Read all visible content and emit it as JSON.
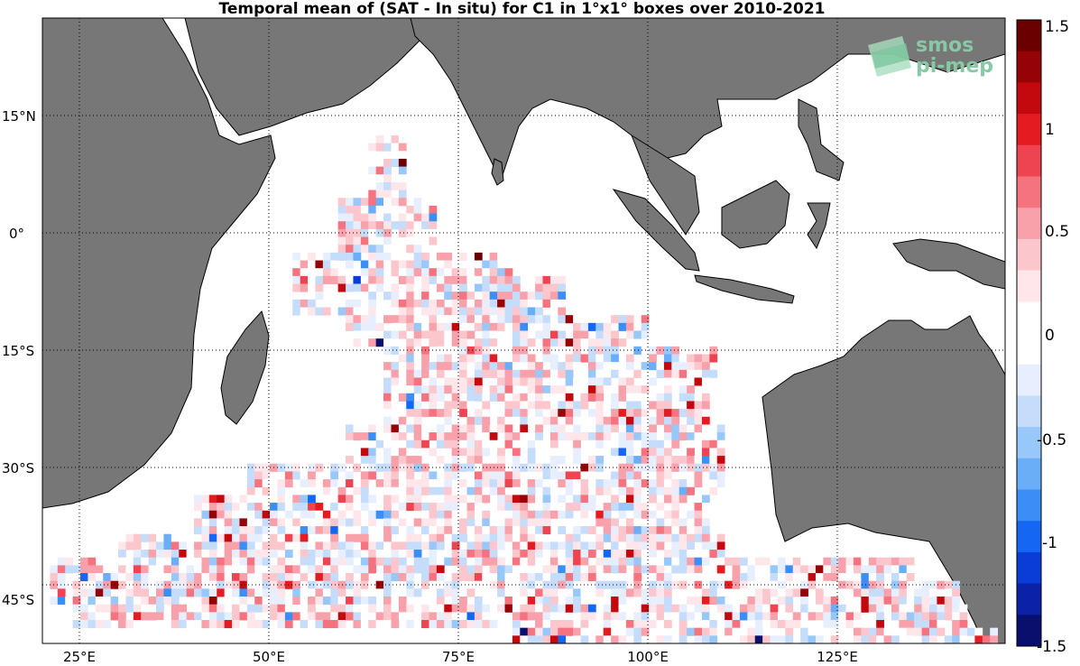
{
  "title": "Temporal mean of (SAT - In situ) for C1 in 1°x1° boxes over 2010-2021",
  "logo": {
    "line1": "smos",
    "line2": "pi-mep"
  },
  "colors": {
    "land": "#777777",
    "ocean": "#ffffff",
    "colormap": [
      "#0a0f6e",
      "#0b22a8",
      "#0a3cd6",
      "#1566f2",
      "#3c8ef7",
      "#6aaef8",
      "#98c7f9",
      "#c5dcfb",
      "#e7efff",
      "#ffffff",
      "#ffffff",
      "#ffe6ea",
      "#fcc6cd",
      "#f9a1ab",
      "#f4737f",
      "#ee4350",
      "#e51b22",
      "#c4090e",
      "#950306",
      "#6b0000"
    ]
  },
  "chart_data": {
    "type": "heatmap",
    "title": "Temporal mean of (SAT - In situ) for C1 in 1°x1° boxes over 2010-2021",
    "lon_range": [
      20,
      147
    ],
    "lat_range": [
      -50,
      30
    ],
    "lon_ticks": [
      "25°E",
      "50°E",
      "75°E",
      "100°E",
      "125°E"
    ],
    "lat_ticks": [
      "15°N",
      "0°",
      "15°S",
      "30°S",
      "45°S"
    ],
    "colorbar": {
      "range": [
        -1.5,
        1.5
      ],
      "tick_labels": [
        "1.5",
        "1",
        "0.5",
        "0",
        "-0.5",
        "-1",
        "-1.5"
      ]
    },
    "grid": true,
    "regions": [
      {
        "lat_from": 15,
        "lat_to": 7,
        "lon_from": 63,
        "lon_to": 68
      },
      {
        "lat_from": 7,
        "lat_to": 0,
        "lon_from": 59,
        "lon_to": 72
      },
      {
        "lat_from": 0,
        "lat_to": -3,
        "lon_from": 52,
        "lon_to": 82
      },
      {
        "lat_from": -3,
        "lat_to": -8,
        "lon_from": 53,
        "lon_to": 89
      },
      {
        "lat_from": -8,
        "lat_to": -12,
        "lon_from": 60,
        "lon_to": 100
      },
      {
        "lat_from": -12,
        "lat_to": -16,
        "lon_from": 65,
        "lon_to": 109
      },
      {
        "lat_from": -16,
        "lat_to": -22,
        "lon_from": 65,
        "lon_to": 108
      },
      {
        "lat_from": -22,
        "lat_to": -27,
        "lon_from": 60,
        "lon_to": 110
      },
      {
        "lat_from": -27,
        "lat_to": -31,
        "lon_from": 47,
        "lon_to": 110
      },
      {
        "lat_from": -31,
        "lat_to": -36,
        "lon_from": 40,
        "lon_to": 108
      },
      {
        "lat_from": -36,
        "lat_to": -39,
        "lon_from": 30,
        "lon_to": 110
      },
      {
        "lat_from": -39,
        "lat_to": -42,
        "lon_from": 21,
        "lon_to": 135
      },
      {
        "lat_from": -42,
        "lat_to": -45,
        "lon_from": 21,
        "lon_to": 141
      },
      {
        "lat_from": -45,
        "lat_to": -48,
        "lon_from": 24,
        "lon_to": 142
      },
      {
        "lat_from": -48,
        "lat_to": -50,
        "lon_from": 82,
        "lon_to": 146
      }
    ],
    "extreme_cells": [
      {
        "lon": 61,
        "lat": -3,
        "value": -1.2
      },
      {
        "lon": 67,
        "lat": 12,
        "value": 1.4
      },
      {
        "lon": 77,
        "lat": 0,
        "value": 1.5
      },
      {
        "lon": 59,
        "lat": -4,
        "value": 1.1
      },
      {
        "lon": 64,
        "lat": -11,
        "value": -1.4
      },
      {
        "lon": 114,
        "lat": -49,
        "value": -1.5
      },
      {
        "lon": 83,
        "lat": -48,
        "value": -1.5
      }
    ]
  }
}
